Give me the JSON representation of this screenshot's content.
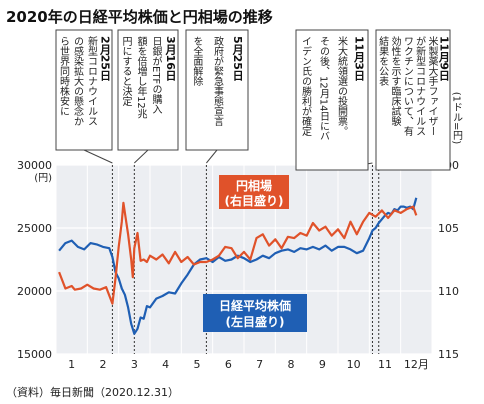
{
  "title": "2020年の日経平均株価と円相場の推移",
  "source": "（資料）毎日新聞（2020.12.31）",
  "callouts": [
    {
      "date": "2月25日",
      "lines": [
        "新型コロナウイルス",
        "の感染拡大の懸念か",
        "ら世界同時株安に"
      ]
    },
    {
      "date": "3月16日",
      "lines": [
        "日銀がETFの購入",
        "額を倍増し年12兆",
        "円にすると決定"
      ]
    },
    {
      "date": "5月25日",
      "lines": [
        "政府が緊急事態宣言",
        "を全面解除"
      ]
    },
    {
      "date": "11月3日",
      "lines": [
        "米大統領選の投開票。",
        "その後、12月14日にバ",
        "イデン氏の勝利が確定"
      ]
    },
    {
      "date": "11月9日",
      "lines": [
        "米製薬大手ファイザー",
        "が新型コロナウイルス",
        "ワクチンについて、有",
        "効性を示す臨床試験",
        "結果を公表"
      ]
    }
  ],
  "chart_data": {
    "type": "line",
    "title": "2020年の日経平均株価と円相場の推移",
    "xlabel": "",
    "x_ticks": [
      "1",
      "2",
      "3",
      "4",
      "5",
      "6",
      "7",
      "8",
      "9",
      "10",
      "11",
      "12月"
    ],
    "left_axis": {
      "unit": "(円)",
      "ticks": [
        "30000",
        "25000",
        "20000",
        "15000"
      ],
      "ylim": [
        15000,
        30000
      ]
    },
    "right_axis": {
      "unit": "(1ドル=円)",
      "ticks": [
        "100",
        "105",
        "110",
        "115"
      ],
      "ylim": [
        100,
        115
      ],
      "inverted": true
    },
    "event_markers": [
      1.8,
      2.5,
      4.8,
      10.1,
      10.3
    ],
    "grid": true,
    "series": [
      {
        "name": "日経平均株価",
        "legend": "日経平均株価",
        "legend_sub": "(左目盛り)",
        "axis": "left",
        "color": "#1f5fb4",
        "x": [
          0.1,
          0.3,
          0.5,
          0.7,
          0.9,
          1.1,
          1.3,
          1.5,
          1.7,
          1.8,
          1.9,
          2.0,
          2.1,
          2.2,
          2.3,
          2.4,
          2.5,
          2.6,
          2.7,
          2.8,
          2.9,
          3.0,
          3.2,
          3.4,
          3.6,
          3.8,
          4.0,
          4.2,
          4.4,
          4.6,
          4.8,
          5.0,
          5.2,
          5.4,
          5.6,
          5.8,
          6.0,
          6.2,
          6.4,
          6.6,
          6.8,
          7.0,
          7.2,
          7.4,
          7.6,
          7.8,
          8.0,
          8.2,
          8.4,
          8.6,
          8.8,
          9.0,
          9.2,
          9.4,
          9.6,
          9.8,
          10.0,
          10.1,
          10.2,
          10.3,
          10.4,
          10.5,
          10.6,
          10.7,
          10.8,
          10.9,
          11.0,
          11.1,
          11.2,
          11.3,
          11.4,
          11.5
        ],
        "values": [
          23200,
          23800,
          24000,
          23500,
          23300,
          23800,
          23700,
          23500,
          23400,
          22700,
          21500,
          21000,
          20200,
          19700,
          18700,
          17400,
          16600,
          17000,
          17900,
          17800,
          18800,
          18700,
          19400,
          19600,
          19900,
          19800,
          20600,
          21300,
          22100,
          22500,
          22600,
          22300,
          22700,
          22400,
          22500,
          22800,
          22600,
          22300,
          22500,
          22800,
          22600,
          23000,
          23200,
          23300,
          23100,
          23400,
          23300,
          23500,
          23300,
          23600,
          23200,
          23500,
          23500,
          23300,
          23000,
          23200,
          24200,
          24800,
          25000,
          25400,
          25700,
          26000,
          26200,
          26100,
          26500,
          26400,
          26700,
          26700,
          26600,
          26700,
          26500,
          27400
        ]
      },
      {
        "name": "円相場",
        "legend": "円相場",
        "legend_sub": "(右目盛り)",
        "axis": "right",
        "color": "#e0522a",
        "x": [
          0.1,
          0.3,
          0.5,
          0.6,
          0.8,
          1.0,
          1.2,
          1.4,
          1.6,
          1.8,
          1.9,
          2.0,
          2.1,
          2.15,
          2.2,
          2.3,
          2.4,
          2.45,
          2.5,
          2.6,
          2.7,
          2.8,
          2.9,
          3.0,
          3.2,
          3.4,
          3.6,
          3.8,
          4.0,
          4.2,
          4.4,
          4.6,
          4.8,
          5.0,
          5.2,
          5.4,
          5.6,
          5.8,
          6.0,
          6.2,
          6.4,
          6.6,
          6.8,
          7.0,
          7.2,
          7.4,
          7.6,
          7.8,
          8.0,
          8.2,
          8.4,
          8.6,
          8.8,
          9.0,
          9.2,
          9.4,
          9.6,
          9.8,
          10.0,
          10.2,
          10.4,
          10.6,
          10.8,
          11.0,
          11.2,
          11.4,
          11.5
        ],
        "values": [
          108.5,
          109.8,
          109.6,
          109.9,
          109.8,
          109.5,
          109.8,
          109.9,
          109.7,
          111.0,
          109.0,
          106.5,
          104.5,
          103.0,
          103.8,
          105.5,
          107.5,
          108.9,
          106.6,
          105.4,
          107.6,
          107.5,
          107.7,
          107.2,
          107.5,
          107.1,
          107.8,
          106.9,
          107.7,
          107.3,
          107.9,
          107.7,
          107.7,
          107.5,
          107.2,
          106.5,
          106.6,
          107.4,
          106.9,
          107.5,
          105.8,
          105.5,
          106.4,
          105.9,
          106.6,
          105.7,
          105.8,
          105.4,
          105.6,
          104.6,
          105.2,
          104.9,
          105.6,
          105.1,
          105.8,
          104.5,
          105.5,
          104.5,
          103.8,
          104.1,
          103.6,
          104.2,
          103.6,
          103.8,
          103.5,
          103.3,
          104.0
        ]
      }
    ]
  }
}
